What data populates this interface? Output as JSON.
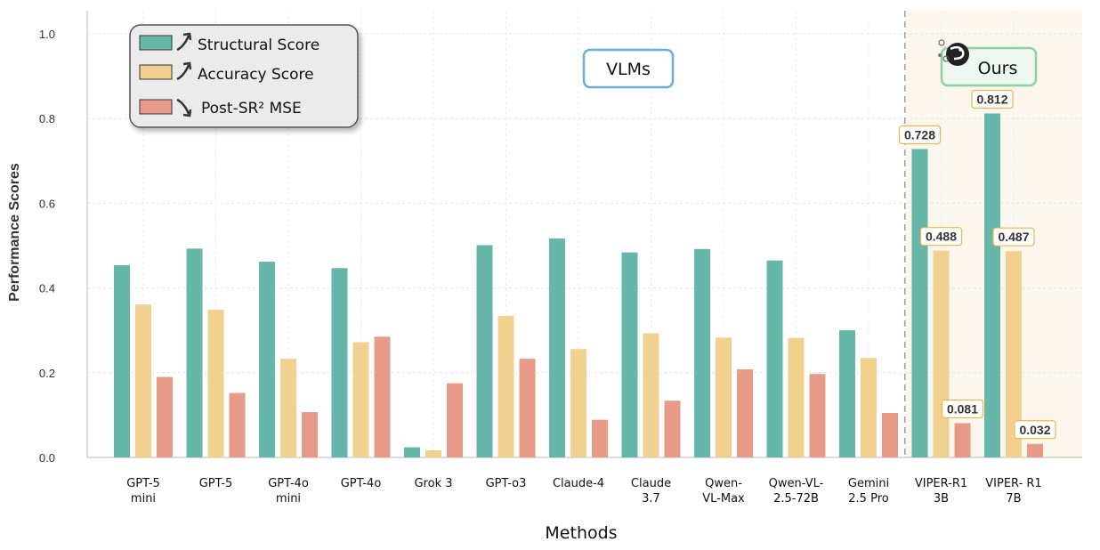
{
  "chart_data": {
    "type": "bar",
    "xlabel": "Methods",
    "ylabel": "Performance Scores",
    "ylim": [
      0,
      1.0
    ],
    "yticks": [
      "0.0",
      "0.2",
      "0.4",
      "0.6",
      "0.8",
      "1.0"
    ],
    "grid": true,
    "legend_position": "top-left",
    "categories": [
      [
        "GPT-5",
        "mini"
      ],
      [
        "GPT-5"
      ],
      [
        "GPT-4o",
        "mini"
      ],
      [
        "GPT-4o"
      ],
      [
        "Grok 3"
      ],
      [
        "GPT-o3"
      ],
      [
        "Claude-4"
      ],
      [
        "Claude",
        "3.7"
      ],
      [
        "Qwen-",
        "VL-Max"
      ],
      [
        "Qwen-VL-",
        "2.5-72B"
      ],
      [
        "Gemini",
        "2.5 Pro"
      ],
      [
        "VIPER-R1",
        "3B"
      ],
      [
        "VIPER- R1",
        "7B"
      ]
    ],
    "series": [
      {
        "name": "Structural Score",
        "color": "#67b6aa",
        "values": [
          0.454,
          0.493,
          0.462,
          0.447,
          0.024,
          0.501,
          0.517,
          0.484,
          0.492,
          0.465,
          0.3,
          0.728,
          0.812
        ]
      },
      {
        "name": "Accuracy Score",
        "color": "#f0d18f",
        "values": [
          0.361,
          0.349,
          0.233,
          0.272,
          0.017,
          0.334,
          0.256,
          0.293,
          0.283,
          0.282,
          0.235,
          0.488,
          0.487
        ]
      },
      {
        "name": "Post-SR² MSE",
        "color": "#e79a87",
        "values": [
          0.19,
          0.152,
          0.107,
          0.285,
          0.175,
          0.233,
          0.089,
          0.134,
          0.208,
          0.197,
          0.105,
          0.081,
          0.032
        ]
      }
    ],
    "data_labels": [
      {
        "category_index": 11,
        "series_index": 0,
        "text": "0.728"
      },
      {
        "category_index": 11,
        "series_index": 1,
        "text": "0.488"
      },
      {
        "category_index": 11,
        "series_index": 2,
        "text": "0.081"
      },
      {
        "category_index": 12,
        "series_index": 0,
        "text": "0.812"
      },
      {
        "category_index": 12,
        "series_index": 1,
        "text": "0.487"
      },
      {
        "category_index": 12,
        "series_index": 2,
        "text": "0.032"
      }
    ],
    "groups": [
      {
        "label": "VLMs",
        "border_color": "#6aaed8"
      },
      {
        "label": "Ours",
        "border_color": "#8fd0a8"
      }
    ],
    "divider_after_index": 10,
    "highlight_bg_color": "#fbf6ee"
  }
}
